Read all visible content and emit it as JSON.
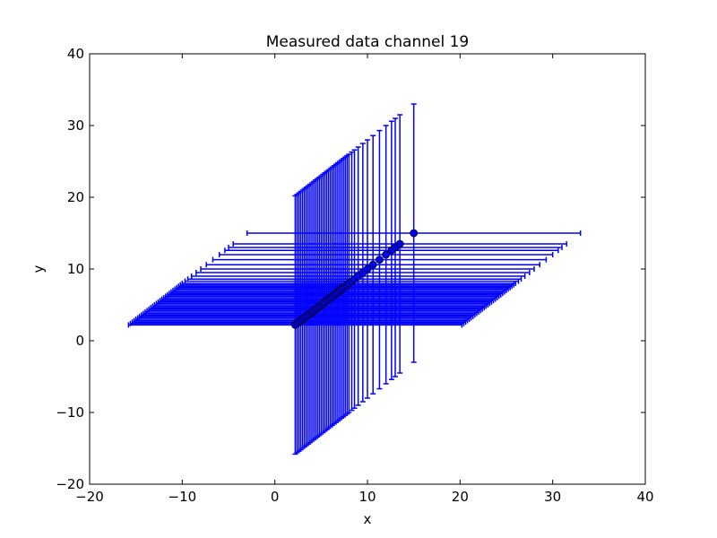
{
  "chart_data": {
    "type": "scatter",
    "title": "Measured data channel 19",
    "xlabel": "x",
    "ylabel": "y",
    "xlim": [
      -20,
      40
    ],
    "ylim": [
      -20,
      40
    ],
    "xticks": [
      -20,
      -10,
      0,
      10,
      20,
      30,
      40
    ],
    "yticks": [
      -20,
      -10,
      0,
      10,
      20,
      30,
      40
    ],
    "grid": false,
    "series": [
      {
        "marker": "circle",
        "marker_color": "#0000ff",
        "errorbar_color": "#0000ff",
        "x_error": 18,
        "y_error": 18,
        "x": [
          2.2,
          2.4,
          2.6,
          2.8,
          3.0,
          3.2,
          3.4,
          3.6,
          3.8,
          4.0,
          4.2,
          4.4,
          4.6,
          4.8,
          5.0,
          5.2,
          5.4,
          5.6,
          5.8,
          6.0,
          6.2,
          6.4,
          6.6,
          6.8,
          7.0,
          7.2,
          7.4,
          7.6,
          7.8,
          8.0,
          8.3,
          8.6,
          9.0,
          9.5,
          10.0,
          10.6,
          11.3,
          12.0,
          12.6,
          13.0,
          13.5,
          15.0
        ],
        "y": [
          2.2,
          2.4,
          2.6,
          2.8,
          3.0,
          3.2,
          3.4,
          3.6,
          3.8,
          4.0,
          4.2,
          4.4,
          4.6,
          4.8,
          5.0,
          5.2,
          5.4,
          5.6,
          5.8,
          6.0,
          6.2,
          6.4,
          6.6,
          6.8,
          7.0,
          7.2,
          7.4,
          7.6,
          7.8,
          8.0,
          8.3,
          8.6,
          9.0,
          9.5,
          10.0,
          10.6,
          11.3,
          12.0,
          12.6,
          13.0,
          13.5,
          15.0
        ]
      }
    ]
  }
}
